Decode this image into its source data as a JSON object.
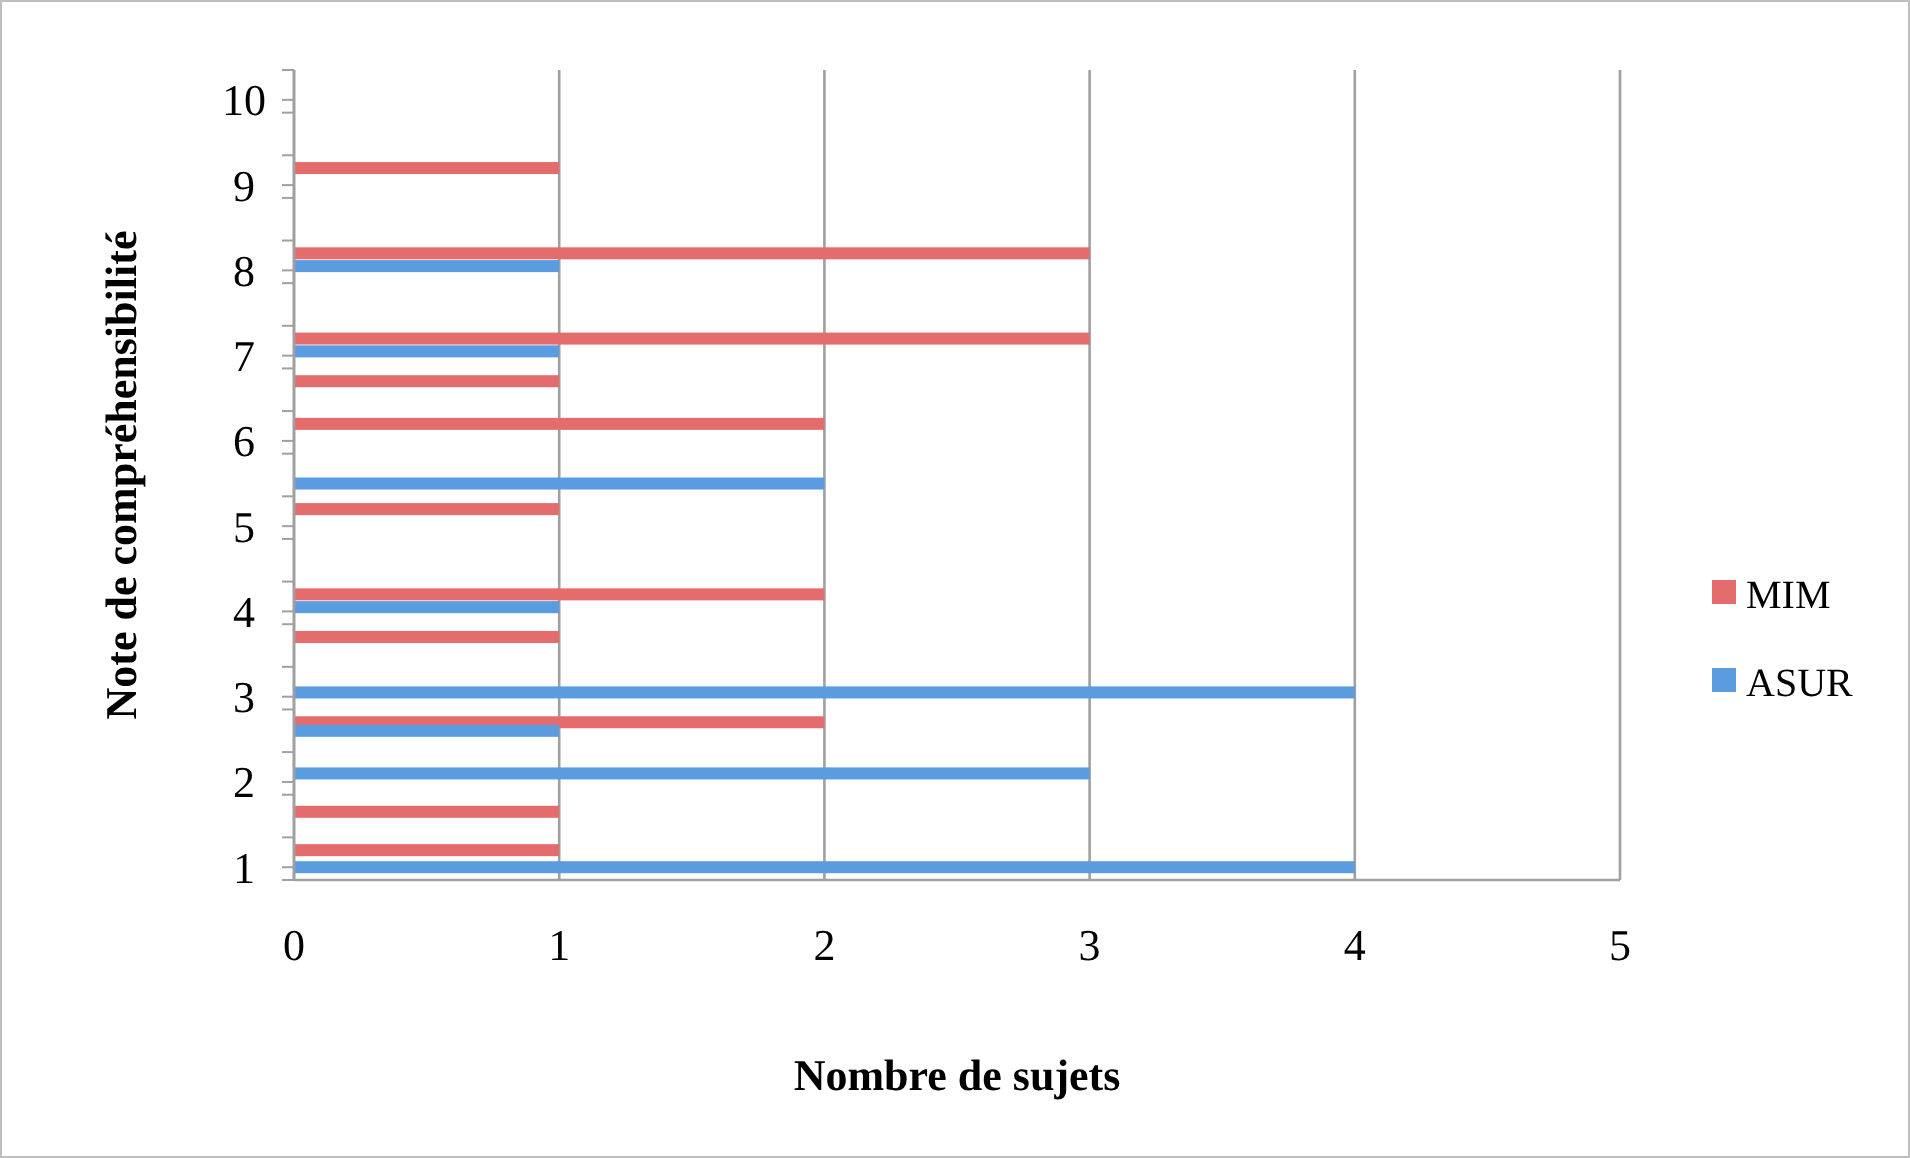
{
  "chart_data": {
    "type": "bar",
    "orientation": "horizontal",
    "xlabel": "Nombre de sujets",
    "ylabel": "Note de compréhensibilité",
    "series": [
      {
        "name": "MIM",
        "color": "#e46c6c",
        "x": [
          9.2,
          8.2,
          7.2,
          6.7,
          6.2,
          5.2,
          4.2,
          3.7,
          2.7,
          1.65,
          1.2
        ],
        "values": [
          1,
          3,
          3,
          1,
          2,
          1,
          2,
          1,
          2,
          1,
          1
        ]
      },
      {
        "name": "ASUR",
        "color": "#5b9be0",
        "x": [
          8.05,
          7.05,
          5.5,
          4.05,
          3.05,
          2.6,
          2.1,
          1.0
        ],
        "values": [
          1,
          1,
          2,
          1,
          4,
          1,
          3,
          4
        ]
      }
    ],
    "xlim": [
      0,
      5
    ],
    "xticks": [
      0,
      1,
      2,
      3,
      4,
      5
    ],
    "ylim": [
      0.85,
      10.35
    ],
    "yticks": [
      {
        "value": 0.85,
        "label": null
      },
      1,
      {
        "value": 1.35,
        "label": null
      },
      {
        "value": 1.85,
        "label": null
      },
      2,
      {
        "value": 2.35,
        "label": null
      },
      {
        "value": 2.85,
        "label": null
      },
      3,
      {
        "value": 3.35,
        "label": null
      },
      {
        "value": 3.85,
        "label": null
      },
      4,
      {
        "value": 4.35,
        "label": null
      },
      {
        "value": 4.85,
        "label": null
      },
      5,
      {
        "value": 5.35,
        "label": null
      },
      {
        "value": 5.85,
        "label": null
      },
      6,
      {
        "value": 6.35,
        "label": null
      },
      {
        "value": 6.85,
        "label": null
      },
      7,
      {
        "value": 7.35,
        "label": null
      },
      {
        "value": 7.85,
        "label": null
      },
      8,
      {
        "value": 8.35,
        "label": null
      },
      {
        "value": 8.85,
        "label": null
      },
      9,
      {
        "value": 9.35,
        "label": null
      },
      {
        "value": 9.85,
        "label": null
      },
      10,
      {
        "value": 10.35,
        "label": null
      }
    ],
    "grid": "x",
    "legend": "right"
  }
}
